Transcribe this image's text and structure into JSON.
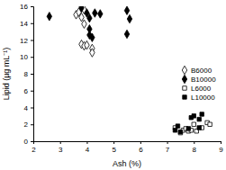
{
  "chart_data": {
    "type": "scatter",
    "x_label": "Ash (%)",
    "y_label": "Lipid (µg mL⁻¹)",
    "xlim": [
      2,
      9
    ],
    "xticks": [
      2,
      3,
      4,
      5,
      6,
      7,
      8,
      9
    ],
    "ylim": [
      0,
      16
    ],
    "yticks": [
      0,
      2,
      4,
      6,
      8,
      10,
      12,
      14,
      16
    ],
    "grid": false,
    "legend": "lower right",
    "series": [
      {
        "name": "B6000",
        "color": "#000000",
        "marker": "open-diamond",
        "x": [
          3.6,
          3.7,
          3.8,
          3.9,
          3.8,
          3.9,
          3.8,
          3.9,
          4.0,
          4.2,
          4.2
        ],
        "values": [
          15.0,
          15.3,
          16.0,
          15.6,
          14.7,
          13.9,
          11.5,
          11.3,
          11.4,
          11.0,
          10.5
        ]
      },
      {
        "name": "B10000",
        "color": "#000000",
        "marker": "diamond",
        "x": [
          2.6,
          3.8,
          4.0,
          4.1,
          4.3,
          4.5,
          4.1,
          4.1,
          4.2,
          5.6,
          5.5,
          5.5
        ],
        "values": [
          14.8,
          15.8,
          15.2,
          14.6,
          15.2,
          15.1,
          13.3,
          12.6,
          12.3,
          14.5,
          12.7,
          15.5
        ]
      },
      {
        "name": "L6000",
        "color": "#000000",
        "marker": "open-square",
        "x": [
          7.3,
          7.5,
          7.6,
          7.7,
          7.8,
          7.9,
          8.0,
          8.1,
          8.3,
          8.5,
          8.6
        ],
        "values": [
          1.6,
          1.0,
          1.3,
          1.5,
          1.2,
          1.3,
          2.0,
          1.2,
          1.6,
          2.2,
          2.0
        ]
      },
      {
        "name": "L10000",
        "color": "#000000",
        "marker": "square",
        "x": [
          7.3,
          7.4,
          7.5,
          7.8,
          7.9,
          8.0,
          8.2,
          8.2,
          8.3
        ],
        "values": [
          1.3,
          1.8,
          1.1,
          1.5,
          2.8,
          3.0,
          2.6,
          1.6,
          3.2
        ]
      }
    ]
  }
}
